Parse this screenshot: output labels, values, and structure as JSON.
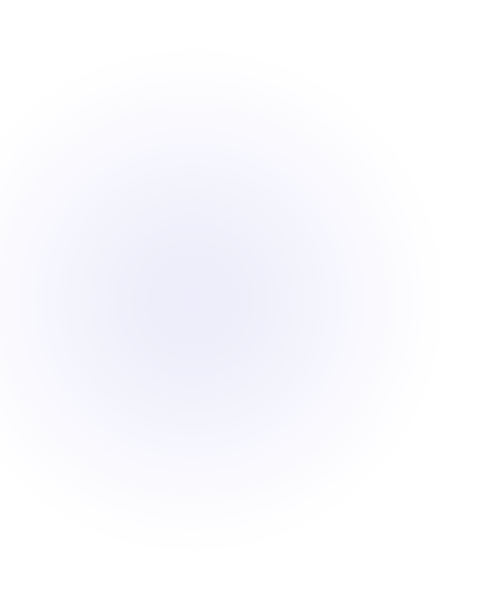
{
  "background": {
    "base_color": "#ffffff",
    "glow_color": "#ededfb"
  }
}
